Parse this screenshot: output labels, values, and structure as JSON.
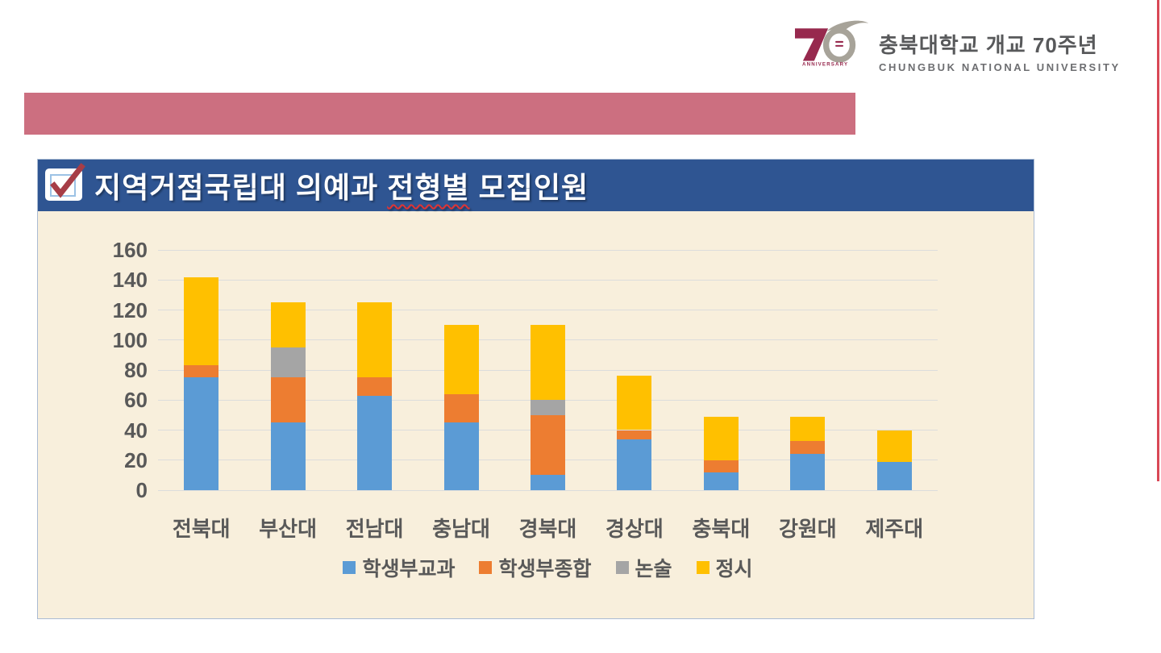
{
  "logo": {
    "mark_number": "70",
    "anniversary": "ANNIVERSARY",
    "korean": "충북대학교 개교 70주년",
    "english": "CHUNGBUK NATIONAL UNIVERSITY"
  },
  "header": {
    "title_prefix": "지역거점국립대 의예과 ",
    "title_marked": "전형별",
    "title_suffix": " 모집인원"
  },
  "colors": {
    "banner_pink": "#cc6f80",
    "title_bar_blue": "#2f5592",
    "chart_bg": "#f8efdc",
    "gridline": "#dcdcdc",
    "axis_text": "#595959",
    "logo_maroon": "#97294e",
    "logo_gray": "#a7a399",
    "checkbox_red": "#a63d47",
    "right_line_red": "#d94856",
    "series_blue": "#5b9bd5",
    "series_orange": "#ed7d31",
    "series_gray": "#a5a5a5",
    "series_yellow": "#ffc000"
  },
  "chart_data": {
    "type": "bar",
    "stacked": true,
    "title": "지역거점국립대 의예과 전형별 모집인원",
    "categories": [
      "전북대",
      "부산대",
      "전남대",
      "충남대",
      "경북대",
      "경상대",
      "충북대",
      "강원대",
      "제주대"
    ],
    "series": [
      {
        "name": "학생부교과",
        "key": "gyogwa",
        "color": "#5b9bd5",
        "values": [
          75,
          45,
          63,
          45,
          10,
          34,
          12,
          24,
          19
        ]
      },
      {
        "name": "학생부종합",
        "key": "jonghap",
        "color": "#ed7d31",
        "values": [
          8,
          30,
          12,
          19,
          40,
          6,
          8,
          9,
          0
        ]
      },
      {
        "name": "논술",
        "key": "nonsul",
        "color": "#a5a5a5",
        "values": [
          0,
          20,
          0,
          0,
          10,
          0,
          0,
          0,
          0
        ]
      },
      {
        "name": "정시",
        "key": "jeongsi",
        "color": "#ffc000",
        "values": [
          59,
          30,
          50,
          46,
          50,
          36,
          29,
          16,
          21
        ]
      }
    ],
    "totals": [
      142,
      125,
      125,
      110,
      110,
      76,
      49,
      49,
      40
    ],
    "xlabel": "",
    "ylabel": "",
    "ylim": [
      0,
      160
    ],
    "yticks": [
      0,
      20,
      40,
      60,
      80,
      100,
      120,
      140,
      160
    ],
    "grid": true,
    "legend_position": "bottom"
  }
}
